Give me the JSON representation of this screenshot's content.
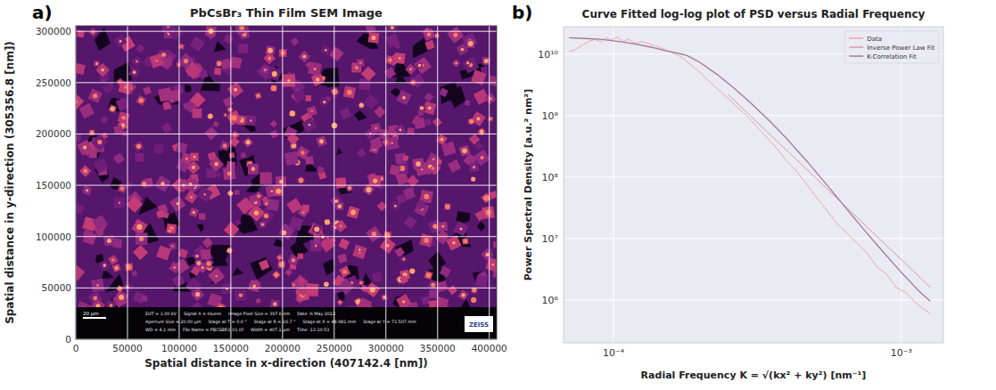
{
  "chart_data": [
    {
      "type": "image",
      "panel_label": "a)",
      "title": "PbCsBr₃ Thin Film SEM Image",
      "x_label": "Spatial distance in x-direction (407142.4 [nm])",
      "y_label": "Spatial distance in y-direction (305356.8 [nm])",
      "xlim": [
        0,
        407142.4
      ],
      "ylim": [
        0,
        305356.8
      ],
      "xticks": [
        0,
        50000,
        100000,
        150000,
        200000,
        250000,
        300000,
        350000,
        400000
      ],
      "yticks": [
        0,
        50000,
        100000,
        150000,
        200000,
        250000,
        300000
      ],
      "grid": true,
      "scale_bar_label": "20 µm",
      "annotations": [
        [
          "EHT = 1.00 kV",
          "Signal A = InLens",
          "Image Pixel Size = 397.6 nm",
          "Date :6 May 2022"
        ],
        [
          "Aperture Size = 20.00 µm",
          "Stage at T = 0.0 °",
          "Stage at R = 16.7 °",
          "Stage at X = 48.981 mm",
          "Stage at Y = 73.507 mm"
        ],
        [
          "WD = 4.1 mm",
          "File Name = PBCSBR3_01.tif",
          "Width = 407.1 µm",
          "Time :13:10:53"
        ]
      ],
      "logo": "ZEISS"
    },
    {
      "type": "line",
      "panel_label": "b)",
      "title": "Curve Fitted log-log plot of PSD versus Radial Frequency",
      "x_label": "Radial Frequency K = √(kx² + ky²) [nm⁻¹]",
      "y_label": "Power Spectral Density [a.u.² nm²]",
      "log": true,
      "grid": true,
      "legend": "upper right",
      "xlim": [
        6.7e-05,
        0.0014
      ],
      "ylim": [
        200000.0,
        28000000000.0
      ],
      "xticks": [
        {
          "value": 0.0001,
          "label": "10⁻⁴"
        },
        {
          "value": 0.001,
          "label": "10⁻³"
        }
      ],
      "yticks": [
        {
          "value": 1000000.0,
          "label": "10⁶"
        },
        {
          "value": 10000000.0,
          "label": "10⁷"
        },
        {
          "value": 100000000.0,
          "label": "10⁸"
        },
        {
          "value": 1000000000.0,
          "label": "10⁹"
        },
        {
          "value": 10000000000.0,
          "label": "10¹⁰"
        }
      ],
      "series": [
        {
          "name": "Data",
          "color": "#e8aaaa",
          "x": [
            7e-05,
            7.4e-05,
            7.8e-05,
            8.2e-05,
            8.6e-05,
            9e-05,
            9.4e-05,
            9.8e-05,
            0.000103,
            0.000108,
            0.000113,
            0.000119,
            0.000125,
            0.000132,
            0.00014,
            0.00015,
            0.00016,
            0.000172,
            0.000185,
            0.0002,
            0.000215,
            0.00023,
            0.00025,
            0.00027,
            0.00029,
            0.000315,
            0.00034,
            0.00037,
            0.0004,
            0.000435,
            0.00047,
            0.00051,
            0.00055,
            0.0006,
            0.00065,
            0.0007,
            0.00076,
            0.00082,
            0.00089,
            0.00096,
            0.00104,
            0.00112,
            0.0012,
            0.00126
          ],
          "values": [
            11000000000.0,
            12000000000.0,
            14000000000.0,
            16000000000.0,
            17500000000.0,
            16000000000.0,
            18500000000.0,
            17000000000.0,
            19000000000.0,
            16000000000.0,
            17500000000.0,
            15000000000.0,
            16000000000.0,
            15000000000.0,
            13500000000.0,
            12000000000.0,
            10500000000.0,
            9000000000.0,
            6800000000.0,
            5000000000.0,
            3600000000.0,
            2700000000.0,
            1900000000.0,
            1350000000.0,
            1000000000.0,
            660000000.0,
            450000000.0,
            290000000.0,
            180000000.0,
            120000000.0,
            75000000.0,
            45000000.0,
            29000000.0,
            17000000.0,
            12000000.0,
            8500000.0,
            5800000.0,
            3500000.0,
            2600000.0,
            1600000.0,
            1300000.0,
            900000.0,
            700000.0,
            600000.0
          ]
        },
        {
          "name": "Inverse Power Law Fit",
          "color": "#d79aa6",
          "x": [
            0.00025,
            0.0005,
            0.001,
            0.00126
          ],
          "values": [
            2200000000.0,
            100000000.0,
            4500000.0,
            1600000.0
          ]
        },
        {
          "name": "K-Correlation Fit",
          "color": "#a07898",
          "x": [
            7e-05,
            8e-05,
            9e-05,
            0.0001,
            0.00011,
            0.00012,
            0.000135,
            0.00015,
            0.000165,
            0.00018,
            0.0002,
            0.00023,
            0.00026,
            0.0003,
            0.00035,
            0.0004,
            0.00047,
            0.00055,
            0.00065,
            0.00075,
            0.00085,
            0.001,
            0.00115,
            0.00126
          ],
          "values": [
            18500000000.0,
            18000000000.0,
            17500000000.0,
            16500000000.0,
            15500000000.0,
            14500000000.0,
            13000000000.0,
            11500000000.0,
            10500000000.0,
            9500000000.0,
            7300000000.0,
            4600000000.0,
            2900000000.0,
            1600000000.0,
            800000000.0,
            420000000.0,
            180000000.0,
            75000000.0,
            29000000.0,
            13000000.0,
            6600000.0,
            2800000.0,
            1400000.0,
            950000.0
          ]
        }
      ]
    }
  ]
}
